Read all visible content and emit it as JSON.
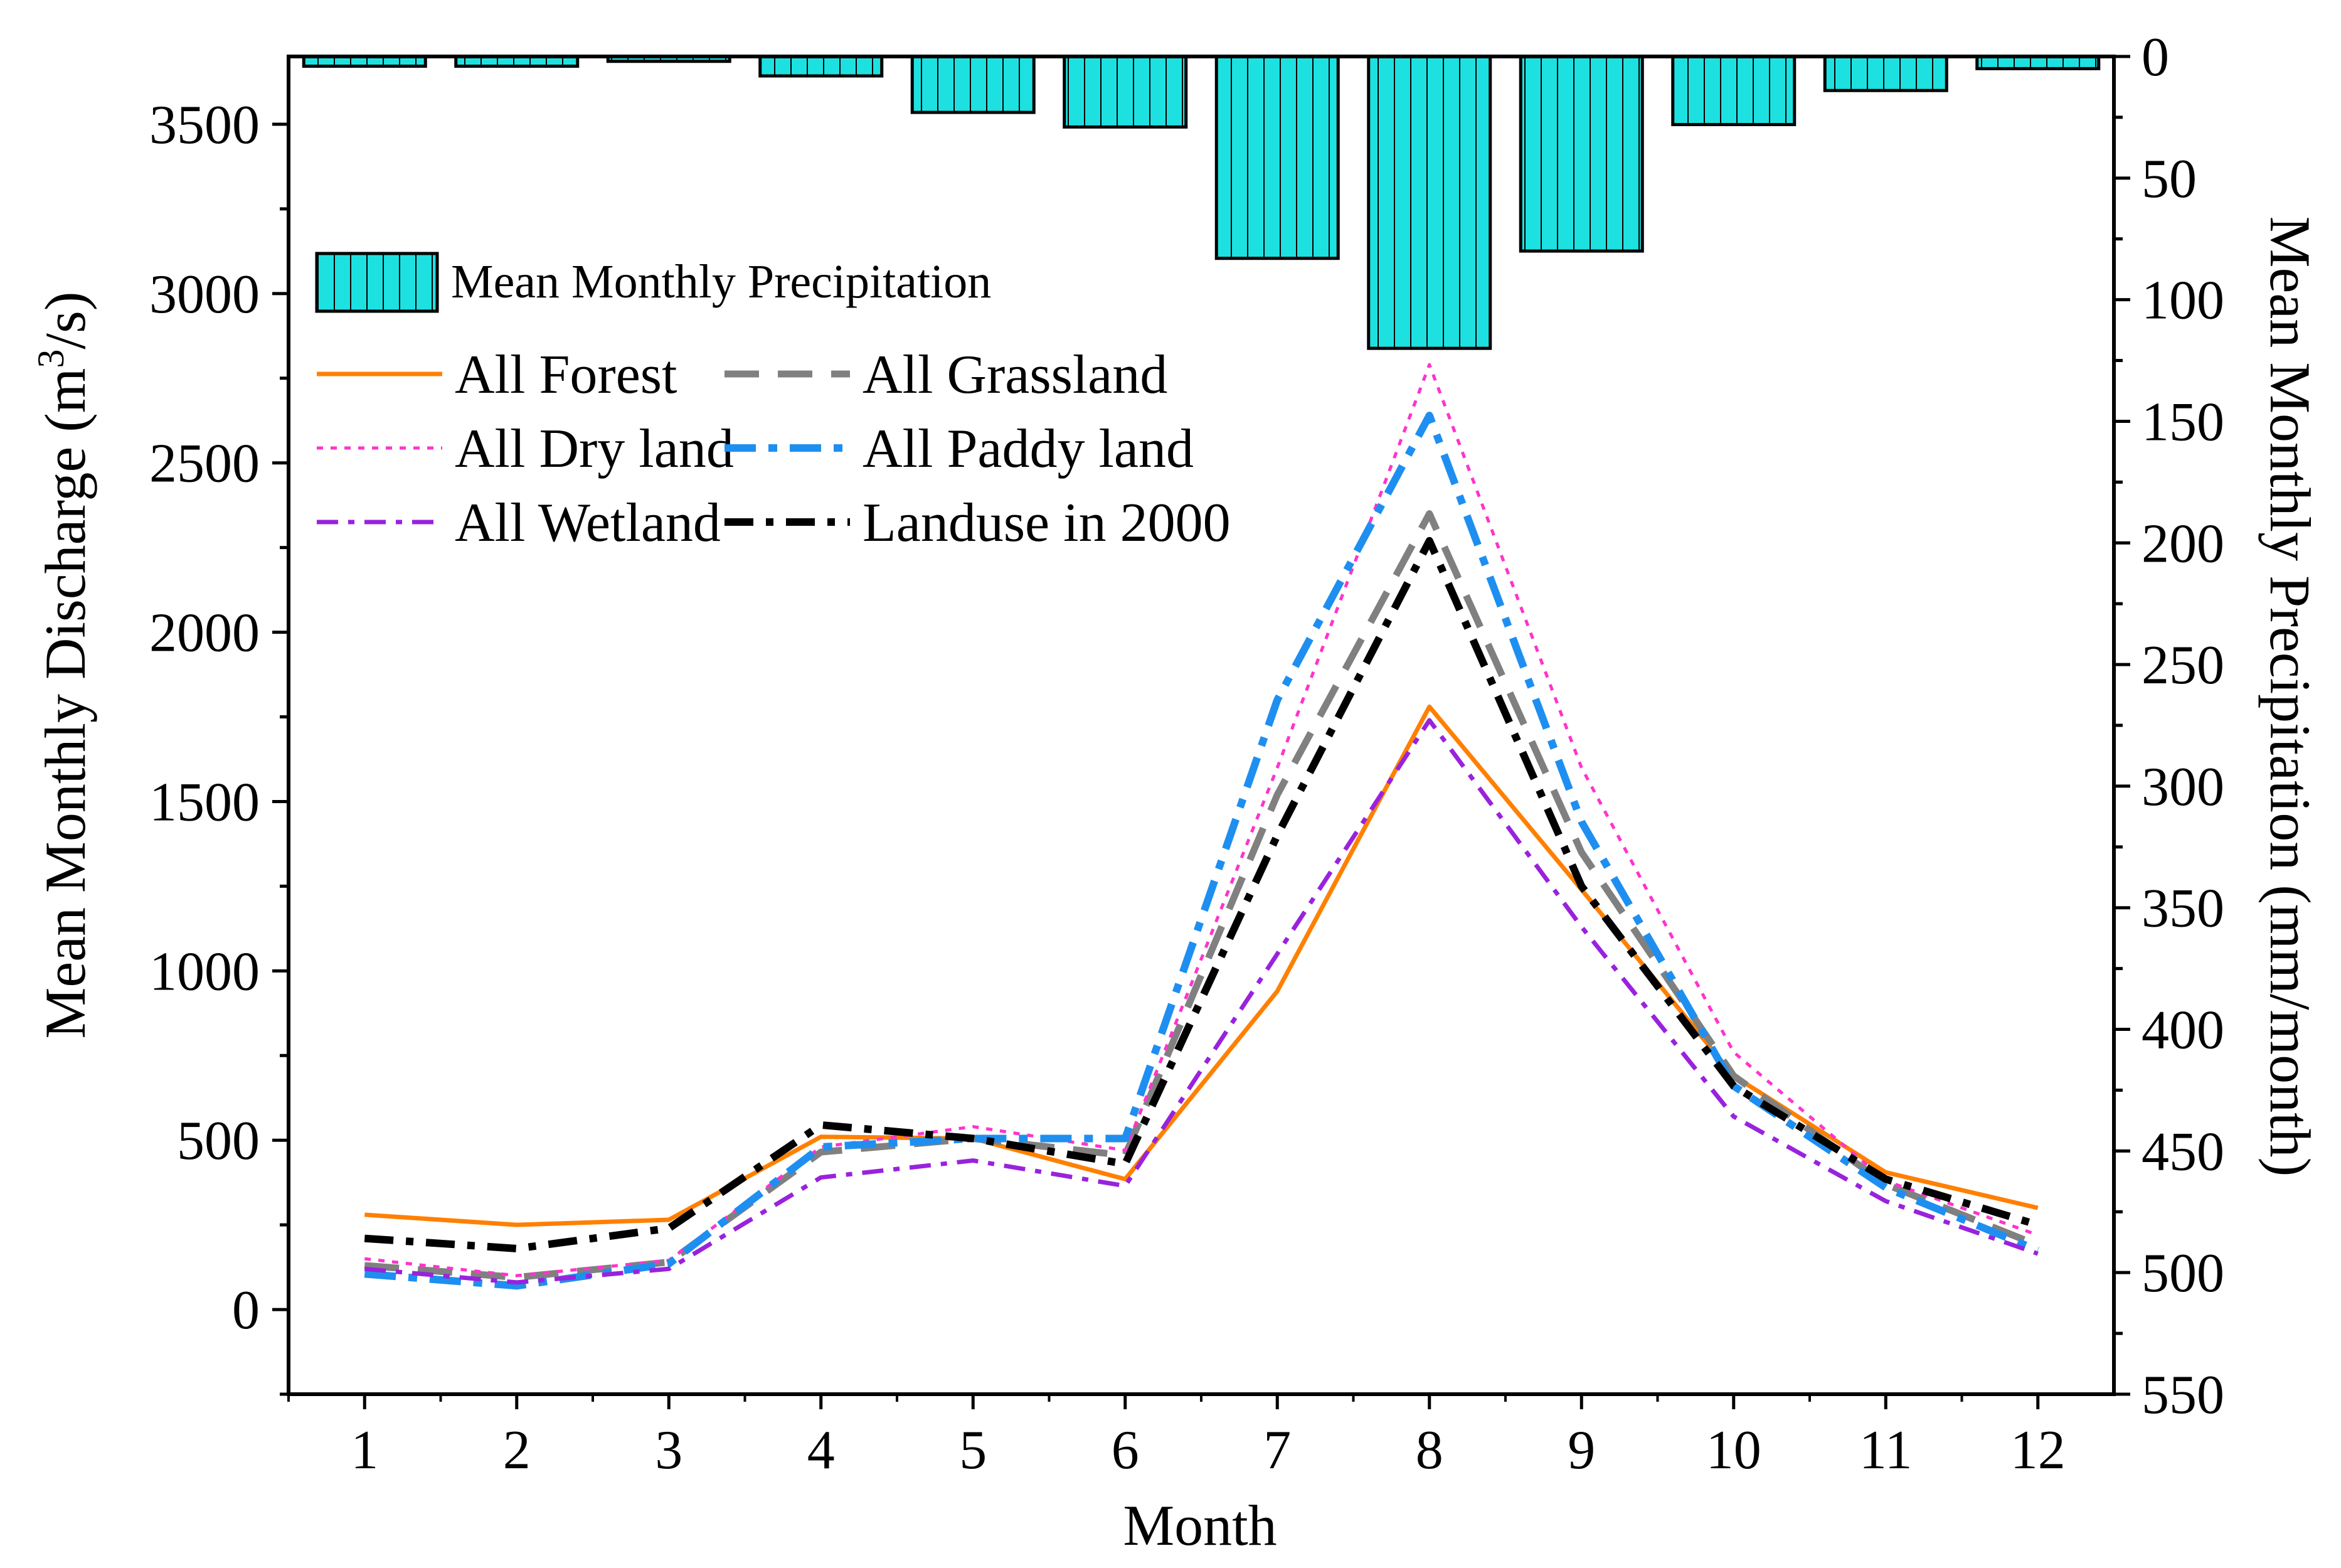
{
  "chart_data": {
    "type": "line+bar",
    "title": "",
    "xlabel": "Month",
    "ylabel": "Mean Monthly Discharge (m³/s)",
    "ylabel_parts": {
      "pre": "Mean Monthly Discharge (m",
      "sup": "3",
      "post": "/s)"
    },
    "y2label": "Mean Monthly Precipitation (mm/month)",
    "categories": [
      "1",
      "2",
      "3",
      "4",
      "5",
      "6",
      "7",
      "8",
      "9",
      "10",
      "11",
      "12"
    ],
    "xlim": [
      0.5,
      12.5
    ],
    "ylim": [
      -250,
      3700
    ],
    "yticks": [
      0,
      500,
      1000,
      1500,
      2000,
      2500,
      3000,
      3500
    ],
    "y2lim": [
      0,
      550
    ],
    "y2ticks": [
      0,
      50,
      100,
      150,
      200,
      250,
      300,
      350,
      400,
      450,
      500,
      550
    ],
    "y2_inverted": true,
    "precipitation": {
      "name": "Mean Monthly Precipitation",
      "color": "#1de1e1",
      "values": [
        4,
        4,
        2,
        8,
        23,
        29,
        83,
        120,
        80,
        28,
        14,
        5
      ]
    },
    "series": [
      {
        "name": "All Forest",
        "color": "#ff8000",
        "style": "solid",
        "values": [
          280,
          250,
          265,
          510,
          505,
          385,
          940,
          1780,
          1240,
          690,
          405,
          300
        ]
      },
      {
        "name": "All Grassland",
        "color": "#808080",
        "style": "dash",
        "values": [
          130,
          95,
          140,
          465,
          505,
          455,
          1520,
          2350,
          1350,
          690,
          370,
          190
        ]
      },
      {
        "name": "All Dry land",
        "color": "#ff33cc",
        "style": "dot",
        "values": [
          150,
          100,
          145,
          480,
          540,
          470,
          1600,
          2790,
          1600,
          760,
          380,
          220
        ]
      },
      {
        "name": "All Paddy land",
        "color": "#1e8ff0",
        "style": "dashdot",
        "values": [
          105,
          70,
          135,
          480,
          505,
          505,
          1800,
          2640,
          1440,
          660,
          360,
          175
        ]
      },
      {
        "name": "All Wetland",
        "color": "#9922dd",
        "style": "dashdot-thin",
        "values": [
          120,
          80,
          120,
          390,
          440,
          365,
          1050,
          1740,
          1130,
          570,
          320,
          165
        ]
      },
      {
        "name": "Landuse in 2000",
        "color": "#000000",
        "style": "dashdot-bold",
        "values": [
          210,
          180,
          240,
          545,
          505,
          430,
          1400,
          2270,
          1250,
          660,
          385,
          250
        ]
      }
    ],
    "legend": {
      "placement": "top-left",
      "bar_entry": "Mean Monthly Precipitation",
      "line_rows": [
        [
          "All Forest",
          "All Grassland"
        ],
        [
          "All Dry land",
          "All Paddy land"
        ],
        [
          "All Wetland",
          "Landuse in 2000"
        ]
      ]
    }
  }
}
